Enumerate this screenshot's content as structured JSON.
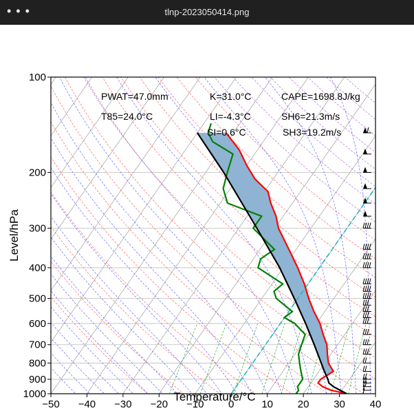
{
  "window": {
    "title": "tlnp-2023050414.png",
    "menu_icon": "more-dots-icon",
    "menu_glyph": "• • •"
  },
  "chart_data": {
    "type": "skew-t",
    "xlabel": "Temperature/°C",
    "ylabel": "Level/hPa",
    "x_range": [
      -50,
      40
    ],
    "p_range": [
      1000,
      100
    ],
    "x_ticks": [
      -50,
      -40,
      -30,
      -20,
      -10,
      0,
      10,
      20,
      30,
      40
    ],
    "x_tick_labels": [
      "−50",
      "−40",
      "−30",
      "−20",
      "−10",
      "0",
      "10",
      "20",
      "30",
      "40"
    ],
    "y_ticks": [
      1000,
      900,
      800,
      700,
      600,
      500,
      400,
      300,
      200,
      100
    ],
    "y_tick_labels": [
      "1000",
      "900",
      "800",
      "700",
      "600",
      "500",
      "400",
      "300",
      "200",
      "100"
    ],
    "indices": {
      "pwat": "PWAT=47.0mm",
      "t85": "T85=24.0°C",
      "k": "K=31.0°C",
      "li": "LI=-4.3°C",
      "si": "SI=0.6°C",
      "cape": "CAPE=1698.8J/kg",
      "sh6": "SH6=21.3m/s",
      "sh3": "SH3=19.2m/s"
    },
    "temperature": [
      [
        1000,
        32
      ],
      [
        975,
        27
      ],
      [
        950,
        24
      ],
      [
        925,
        22
      ],
      [
        900,
        22
      ],
      [
        875,
        23
      ],
      [
        850,
        24
      ],
      [
        800,
        21
      ],
      [
        750,
        19
      ],
      [
        700,
        17
      ],
      [
        650,
        14
      ],
      [
        600,
        11
      ],
      [
        550,
        7
      ],
      [
        500,
        3
      ],
      [
        450,
        -1
      ],
      [
        400,
        -6
      ],
      [
        350,
        -12
      ],
      [
        300,
        -19
      ],
      [
        275,
        -22
      ],
      [
        250,
        -26
      ],
      [
        230,
        -29
      ],
      [
        210,
        -35
      ],
      [
        190,
        -40
      ],
      [
        170,
        -45
      ],
      [
        150,
        -52
      ]
    ],
    "dewpoint": [
      [
        1000,
        18
      ],
      [
        975,
        18
      ],
      [
        950,
        17
      ],
      [
        925,
        17
      ],
      [
        900,
        17
      ],
      [
        850,
        15
      ],
      [
        800,
        13
      ],
      [
        750,
        11
      ],
      [
        700,
        10
      ],
      [
        650,
        9
      ],
      [
        600,
        4
      ],
      [
        575,
        0
      ],
      [
        550,
        1
      ],
      [
        500,
        -6
      ],
      [
        475,
        -8
      ],
      [
        450,
        -7
      ],
      [
        400,
        -17
      ],
      [
        375,
        -18
      ],
      [
        350,
        -16
      ],
      [
        300,
        -26
      ],
      [
        275,
        -26
      ],
      [
        250,
        -38
      ],
      [
        225,
        -42
      ],
      [
        200,
        -44
      ],
      [
        175,
        -46
      ],
      [
        160,
        -54
      ],
      [
        150,
        -57
      ],
      [
        140,
        -58
      ]
    ],
    "parcel": [
      [
        1000,
        32
      ],
      [
        975,
        29.5
      ],
      [
        950,
        27
      ],
      [
        925,
        25
      ],
      [
        900,
        24
      ],
      [
        850,
        21.5
      ],
      [
        800,
        19
      ],
      [
        700,
        13.5
      ],
      [
        600,
        7
      ],
      [
        500,
        -1
      ],
      [
        400,
        -11
      ],
      [
        300,
        -25
      ],
      [
        250,
        -34
      ],
      [
        200,
        -45
      ],
      [
        150,
        -60
      ]
    ],
    "cape_fill": "#ffff99",
    "cin_fill": "#8fb3d2",
    "colors": {
      "temperature": "#ff0000",
      "dewpoint": "#008000",
      "parcel": "#000000",
      "isotherm": "#a9a9a9",
      "dry_adiabat": "#ff6060",
      "moist_adiabat": "#6666ff",
      "mixing_ratio": "#33aa33",
      "dry_adiabat_upper": "#b070d0",
      "wet_bulb_zero": "#1fb5c4"
    },
    "wind_barbs": [
      [
        1000,
        5
      ],
      [
        975,
        8
      ],
      [
        950,
        10
      ],
      [
        925,
        11
      ],
      [
        900,
        12
      ],
      [
        850,
        13
      ],
      [
        800,
        14
      ],
      [
        750,
        15
      ],
      [
        700,
        16
      ],
      [
        650,
        17
      ],
      [
        600,
        18
      ],
      [
        575,
        18
      ],
      [
        550,
        19
      ],
      [
        525,
        19
      ],
      [
        500,
        20
      ],
      [
        475,
        20
      ],
      [
        450,
        21
      ],
      [
        400,
        22
      ],
      [
        375,
        22
      ],
      [
        350,
        23
      ],
      [
        300,
        24
      ],
      [
        275,
        25
      ],
      [
        250,
        26
      ],
      [
        225,
        27
      ],
      [
        200,
        28
      ],
      [
        175,
        29
      ],
      [
        150,
        30
      ]
    ]
  }
}
